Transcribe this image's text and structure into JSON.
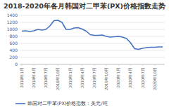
{
  "chart_data": {
    "type": "line",
    "title": "2018-2020年各月韩国对二甲苯(PX)价格指数走势",
    "categories": [
      "2018年1月",
      null,
      null,
      "2018年4月",
      null,
      null,
      "2018年7月",
      null,
      null,
      "2018年10月",
      null,
      null,
      "2019年1月",
      null,
      null,
      "2019年4月",
      null,
      null,
      "2019年7月",
      null,
      null,
      "2019年10月",
      null,
      null,
      "2020年1月",
      null,
      null,
      "2020年4月",
      null,
      null,
      "2020年7月",
      null,
      null,
      "2020年10月",
      null,
      null
    ],
    "series": [
      {
        "name": "韩国对二甲苯(PX)价格指数：美元/吨",
        "color": "#4472c4",
        "values": [
          950,
          960,
          940,
          960,
          1000,
          980,
          1000,
          1100,
          1250,
          1260,
          1200,
          1000,
          1000,
          1040,
          1050,
          1010,
          950,
          850,
          830,
          830,
          840,
          800,
          780,
          790,
          800,
          780,
          740,
          620,
          450,
          430,
          460,
          480,
          490,
          490,
          500,
          500
        ]
      }
    ],
    "ylim": [
      0,
      1400
    ],
    "yticks": [
      0,
      200,
      400,
      600,
      800,
      1000,
      1200,
      1400
    ],
    "grid": true,
    "legend": "bottom"
  }
}
